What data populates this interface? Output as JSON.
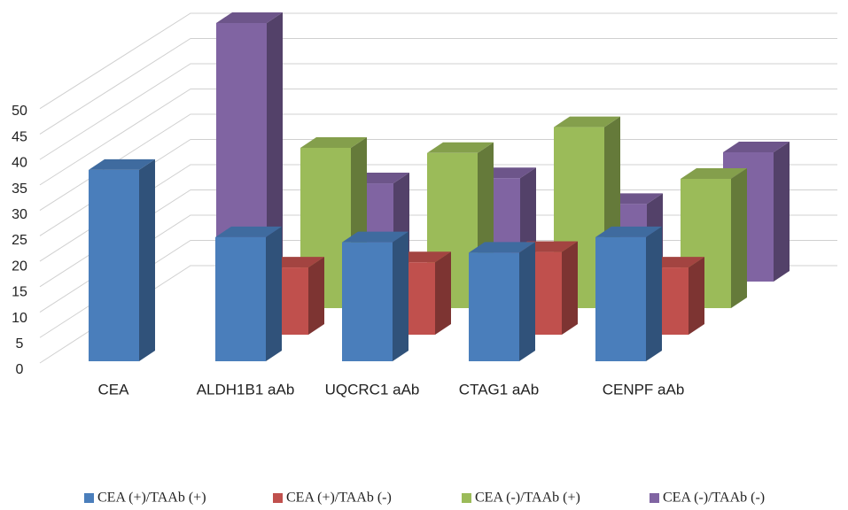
{
  "chart_data": {
    "type": "bar3d",
    "categories": [
      "CEA",
      "ALDH1B1 aAb",
      "UQCRC1 aAb",
      "CTAG1 aAb",
      "CENPF aAb"
    ],
    "series": [
      {
        "name": "CEA (+)/TAAb (+)",
        "color": "#4a7ebb",
        "values": [
          37,
          24,
          23,
          21,
          24
        ]
      },
      {
        "name": "CEA (+)/TAAb (-)",
        "color": "#c0504d",
        "values": [
          null,
          13,
          14,
          16,
          13
        ]
      },
      {
        "name": "CEA (-)/TAAb (+)",
        "color": "#9bbb59",
        "values": [
          null,
          31,
          30,
          35,
          25
        ]
      },
      {
        "name": "CEA (-)/TAAb (-)",
        "color": "#8064a2",
        "values": [
          50,
          19,
          20,
          15,
          25
        ]
      }
    ],
    "ylim": [
      0,
      50
    ],
    "yticks": [
      0,
      5,
      10,
      15,
      20,
      25,
      30,
      35,
      40,
      45,
      50
    ],
    "grid": true
  }
}
